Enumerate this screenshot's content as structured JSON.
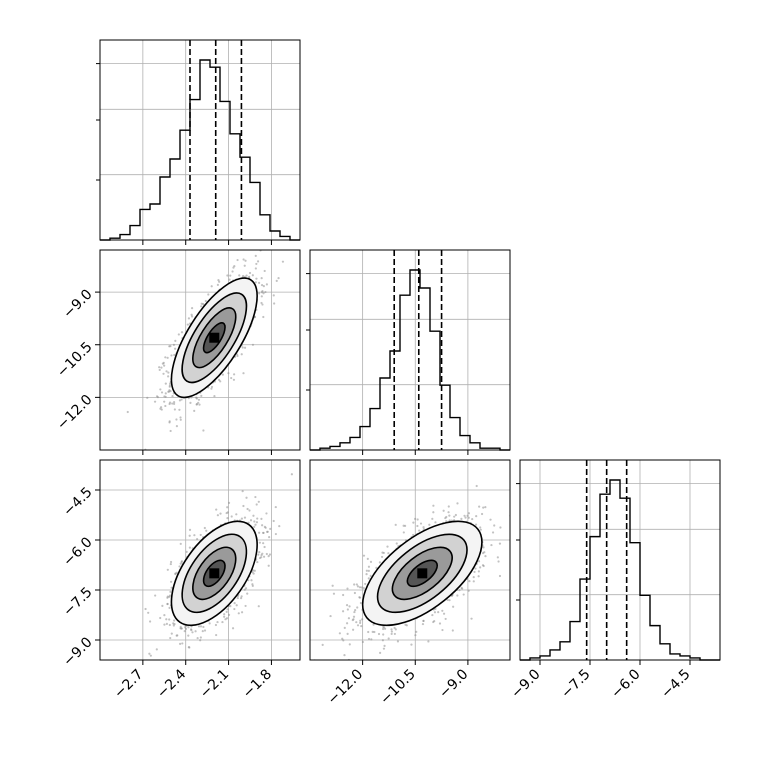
{
  "chart_data": {
    "type": "corner",
    "grid": true,
    "parameters": [
      {
        "index": 0,
        "range": [
          -3.0,
          -1.6
        ],
        "ticks": [
          "-2.7",
          "-2.4",
          "-2.1",
          "-1.8"
        ],
        "tick_values": [
          -2.7,
          -2.4,
          -2.1,
          -1.8
        ],
        "quantiles": [
          -2.37,
          -2.19,
          -2.01
        ]
      },
      {
        "index": 1,
        "range": [
          -13.5,
          -7.8
        ],
        "ticks": [
          "-12.0",
          "-10.5",
          "-9.0"
        ],
        "tick_values": [
          -12.0,
          -10.5,
          -9.0
        ],
        "quantiles": [
          -11.1,
          -10.4,
          -9.75
        ]
      },
      {
        "index": 2,
        "range": [
          -9.6,
          -3.6
        ],
        "ticks": [
          "-9.0",
          "-7.5",
          "-6.0",
          "-4.5"
        ],
        "tick_values": [
          -9.0,
          -7.5,
          -6.0,
          -4.5
        ],
        "quantiles": [
          -7.6,
          -7.0,
          -6.4
        ]
      }
    ],
    "histograms": [
      {
        "param": 0,
        "bin_start": -3.0,
        "bin_width": 0.07,
        "counts": [
          0,
          1,
          3,
          8,
          17,
          20,
          35,
          45,
          61,
          78,
          100,
          96,
          77,
          59,
          46,
          32,
          14,
          5,
          2,
          0
        ]
      },
      {
        "param": 1,
        "bin_start": -13.5,
        "bin_width": 0.285,
        "counts": [
          0,
          1,
          2,
          4,
          7,
          13,
          23,
          40,
          55,
          86,
          100,
          90,
          66,
          36,
          18,
          8,
          4,
          1,
          1,
          0
        ]
      },
      {
        "param": 2,
        "bin_start": -9.6,
        "bin_width": 0.3,
        "counts": [
          0,
          1,
          2,
          5,
          9,
          19,
          40,
          61,
          82,
          89,
          80,
          58,
          32,
          17,
          8,
          3,
          2,
          1,
          0,
          0
        ]
      }
    ],
    "joint_2d": [
      {
        "x_param": 0,
        "y_param": 1,
        "mean": [
          -2.2,
          -10.3
        ],
        "sd": [
          0.15,
          0.85
        ],
        "correlation": 0.7
      },
      {
        "x_param": 0,
        "y_param": 2,
        "mean": [
          -2.2,
          -7.0
        ],
        "sd": [
          0.15,
          0.78
        ],
        "correlation": 0.55
      },
      {
        "x_param": 1,
        "y_param": 2,
        "mean": [
          -10.3,
          -7.0
        ],
        "sd": [
          0.85,
          0.78
        ],
        "correlation": 0.6
      }
    ],
    "contour_levels_sigma": [
      0.5,
      1.0,
      1.5,
      2.0
    ],
    "colors": {
      "line": "#000000",
      "grid": "#b0b0b0",
      "points": "#8f8f8f",
      "density_light": "#ffffff",
      "density_dark": "#000000"
    }
  }
}
